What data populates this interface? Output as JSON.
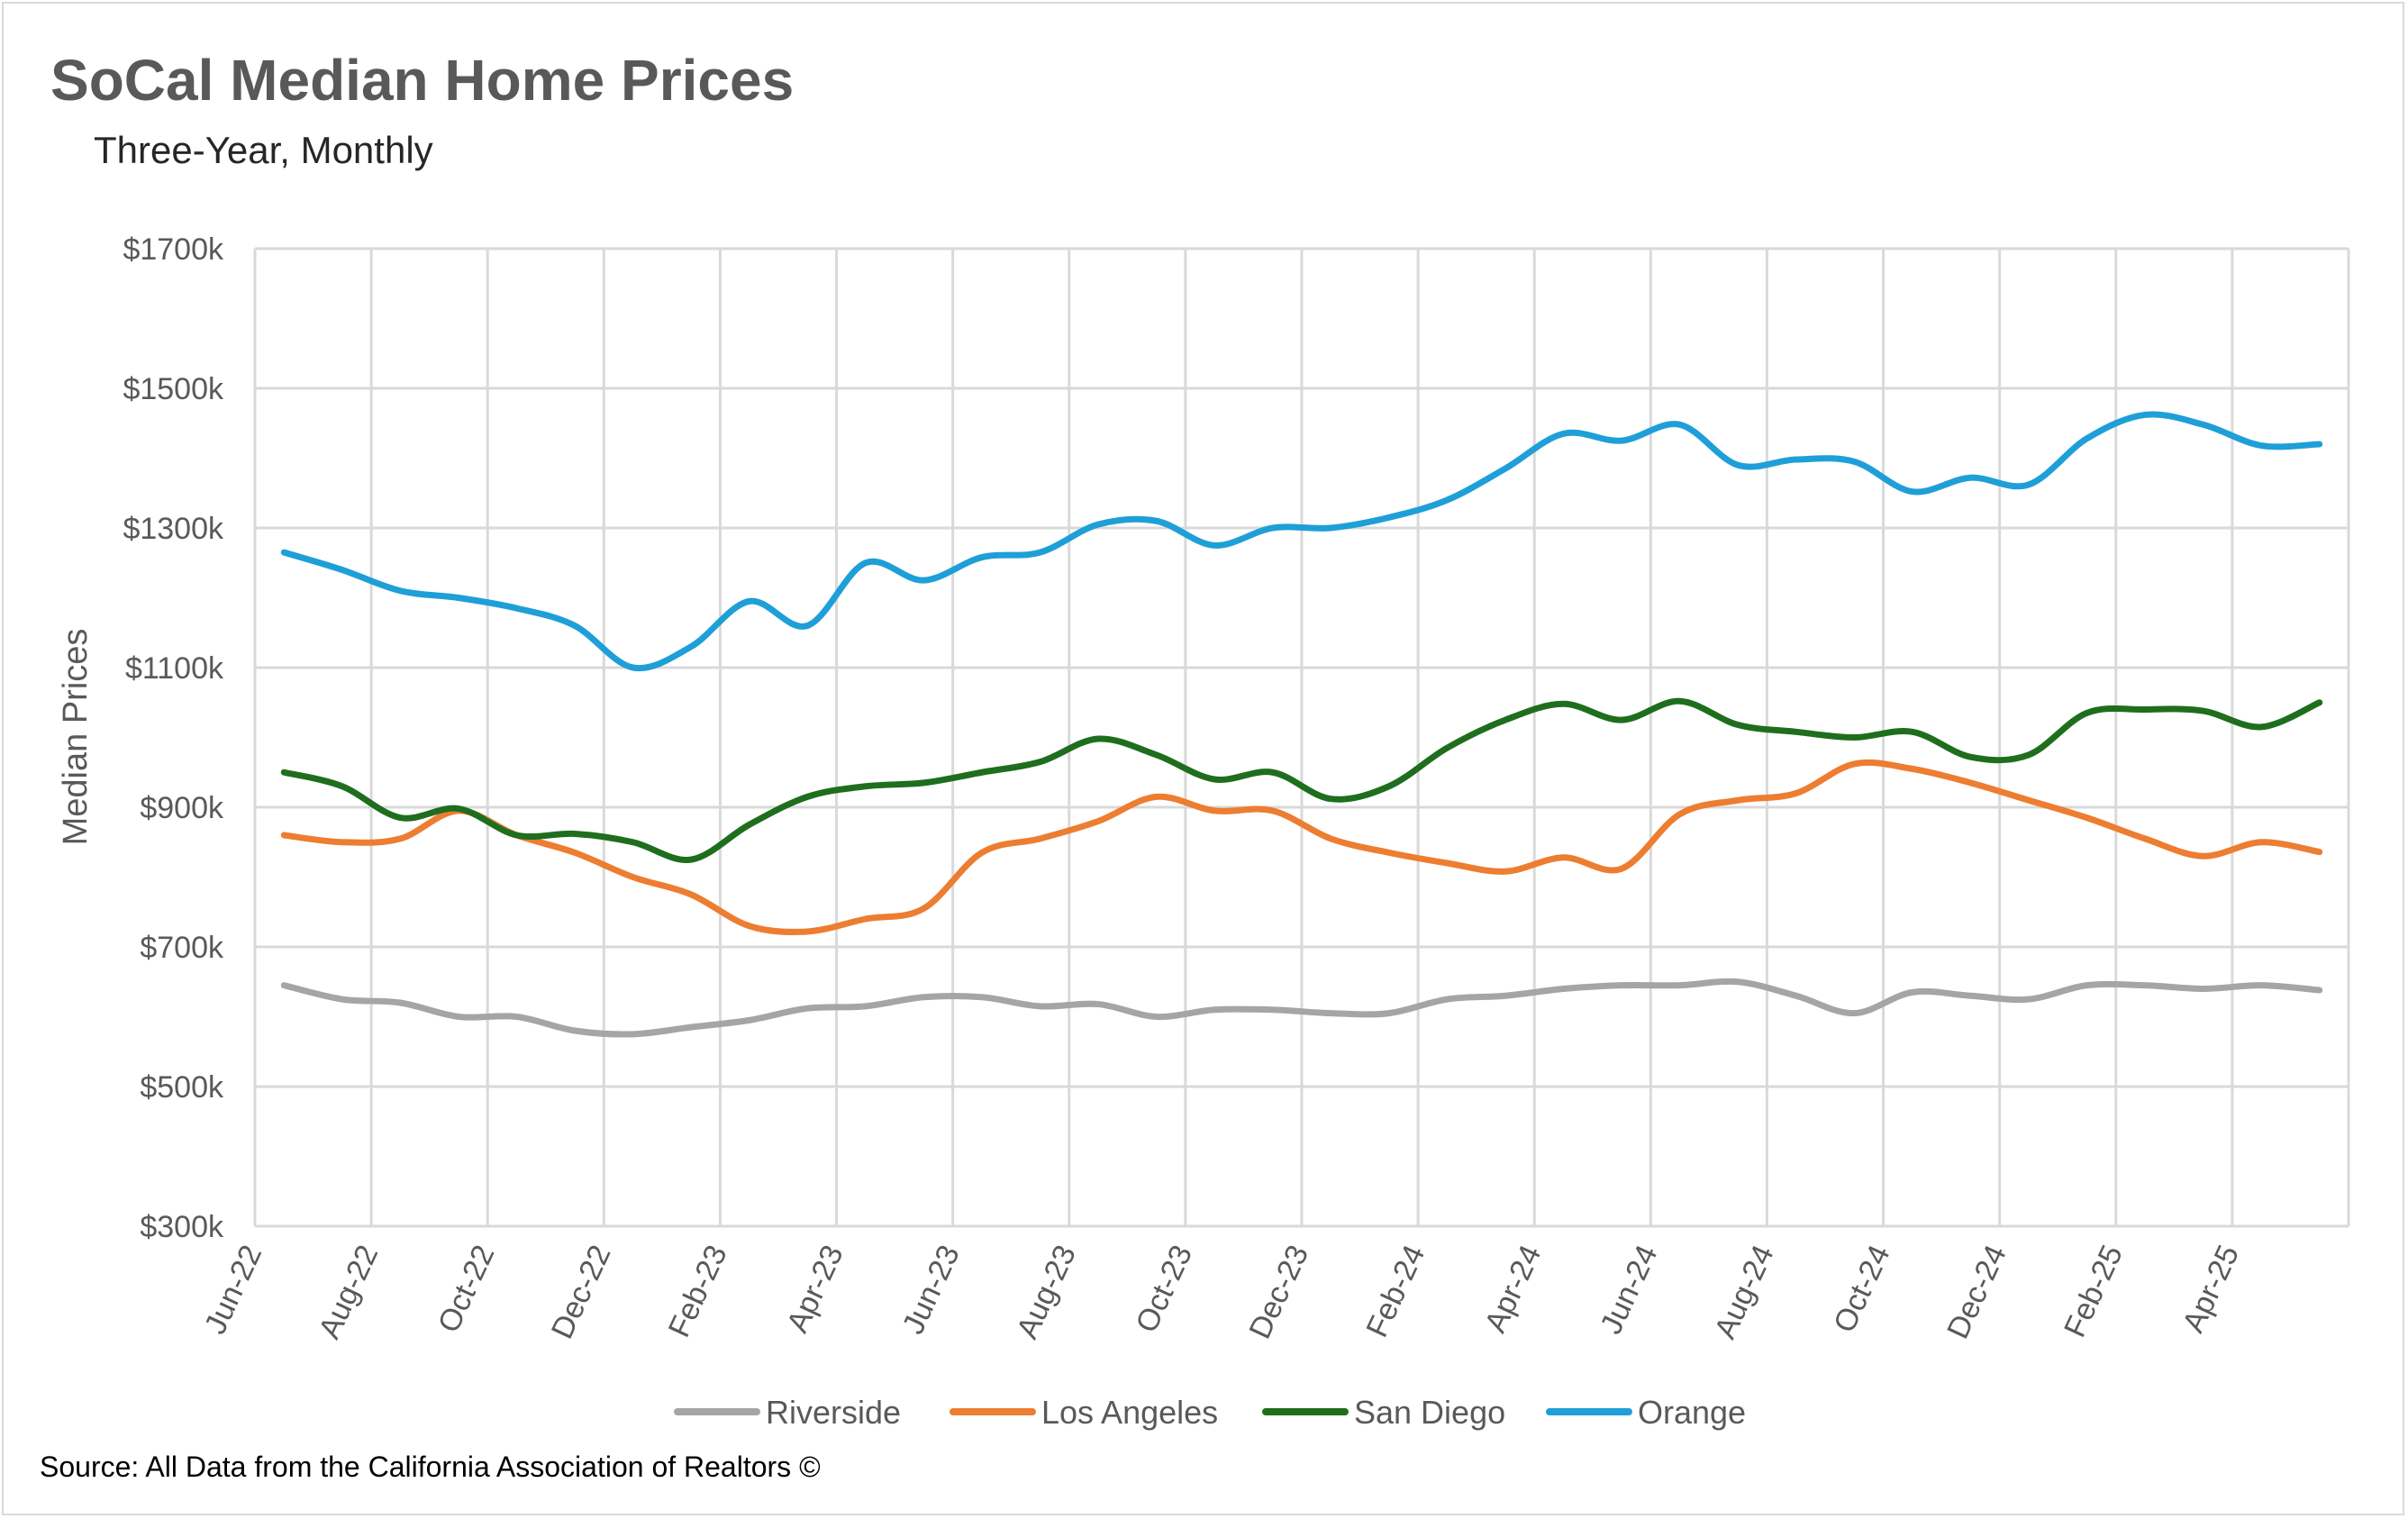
{
  "title": "SoCal Median Home Prices",
  "subtitle": "Three-Year, Monthly",
  "source": "Source: All Data from the California Association of Realtors ©",
  "chart_data": {
    "type": "line",
    "ylabel": "Median Prices",
    "ylim": [
      300,
      1700
    ],
    "yticks": [
      300,
      500,
      700,
      900,
      1100,
      1300,
      1500,
      1700
    ],
    "ytick_labels": [
      "$300k",
      "$500k",
      "$700k",
      "$900k",
      "$1100k",
      "$1300k",
      "$1500k",
      "$1700k"
    ],
    "xtick_labels": [
      "Jun-22",
      "Aug-22",
      "Oct-22",
      "Dec-22",
      "Feb-23",
      "Apr-23",
      "Jun-23",
      "Aug-23",
      "Oct-23",
      "Dec-23",
      "Feb-24",
      "Apr-24",
      "Jun-24",
      "Aug-24",
      "Oct-24",
      "Dec-24",
      "Feb-25",
      "Apr-25"
    ],
    "x": [
      "Jun-22",
      "Jul-22",
      "Aug-22",
      "Sep-22",
      "Oct-22",
      "Nov-22",
      "Dec-22",
      "Jan-23",
      "Feb-23",
      "Mar-23",
      "Apr-23",
      "May-23",
      "Jun-23",
      "Jul-23",
      "Aug-23",
      "Sep-23",
      "Oct-23",
      "Nov-23",
      "Dec-23",
      "Jan-24",
      "Feb-24",
      "Mar-24",
      "Apr-24",
      "May-24",
      "Jun-24",
      "Jul-24",
      "Aug-24",
      "Sep-24",
      "Oct-24",
      "Nov-24",
      "Dec-24",
      "Jan-25",
      "Feb-25",
      "Mar-25",
      "Apr-25",
      "May-25"
    ],
    "grid": true,
    "legend": "bottom",
    "series": [
      {
        "name": "Riverside",
        "color": "#a5a5a5",
        "values": [
          645,
          625,
          620,
          600,
          600,
          580,
          575,
          585,
          595,
          612,
          615,
          628,
          628,
          615,
          618,
          600,
          610,
          610,
          605,
          605,
          625,
          630,
          640,
          645,
          645,
          650,
          630,
          605,
          635,
          630,
          625,
          645,
          645,
          640,
          645,
          638
        ]
      },
      {
        "name": "Los Angeles",
        "color": "#ed7d31",
        "values": [
          860,
          850,
          855,
          895,
          860,
          835,
          800,
          775,
          730,
          722,
          740,
          755,
          835,
          855,
          880,
          915,
          895,
          895,
          855,
          835,
          820,
          808,
          828,
          812,
          890,
          910,
          920,
          962,
          955,
          935,
          910,
          885,
          855,
          830,
          850,
          836
        ]
      },
      {
        "name": "San Diego",
        "color": "#1e6e1e",
        "values": [
          950,
          930,
          885,
          898,
          860,
          862,
          850,
          825,
          875,
          915,
          930,
          935,
          950,
          965,
          998,
          975,
          940,
          950,
          912,
          930,
          985,
          1025,
          1048,
          1025,
          1052,
          1018,
          1008,
          1000,
          1008,
          972,
          975,
          1035,
          1040,
          1038,
          1015,
          1050
        ]
      },
      {
        "name": "Orange",
        "color": "#1f9fd8",
        "values": [
          1265,
          1240,
          1210,
          1200,
          1185,
          1160,
          1100,
          1130,
          1195,
          1160,
          1250,
          1225,
          1258,
          1265,
          1305,
          1310,
          1275,
          1300,
          1300,
          1315,
          1340,
          1385,
          1435,
          1425,
          1448,
          1390,
          1398,
          1395,
          1352,
          1372,
          1362,
          1428,
          1462,
          1448,
          1418,
          1420
        ]
      }
    ]
  }
}
